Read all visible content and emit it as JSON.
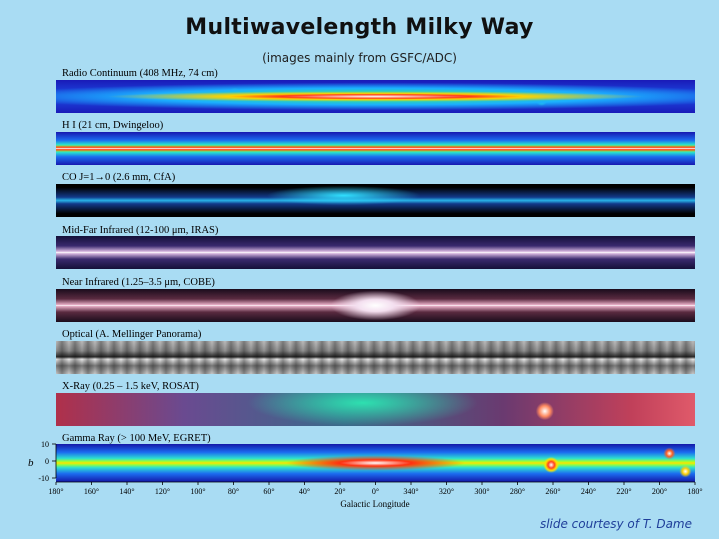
{
  "slide": {
    "title": "Multiwavelength Milky Way",
    "subtitle": "(images mainly from GSFC/ADC)",
    "credit": "slide courtesy of T. Dame"
  },
  "bands": [
    {
      "label": "Radio Continuum (408 MHz, 74 cm)"
    },
    {
      "label": "H I (21 cm, Dwingeloo)"
    },
    {
      "label": "CO J=1→0 (2.6 mm, CfA)"
    },
    {
      "label": "Mid-Far Infrared (12-100 μm, IRAS)"
    },
    {
      "label": "Near Infrared (1.25–3.5 μm, COBE)"
    },
    {
      "label": "Optical (A. Mellinger Panorama)"
    },
    {
      "label": "X-Ray (0.25 – 1.5 keV, ROSAT)"
    },
    {
      "label": "Gamma Ray (> 100 MeV, EGRET)"
    }
  ],
  "axis": {
    "y_label": "b",
    "y_ticks": [
      "10",
      "0",
      "-10"
    ],
    "x_ticks": [
      "180°",
      "160°",
      "140°",
      "120°",
      "100°",
      "80°",
      "60°",
      "40°",
      "20°",
      "0°",
      "340°",
      "320°",
      "300°",
      "280°",
      "260°",
      "240°",
      "220°",
      "200°",
      "180°"
    ],
    "x_label": "Galactic Longitude"
  },
  "colors": {
    "background": "#a9dcf3",
    "credit": "#1f3f9a"
  }
}
